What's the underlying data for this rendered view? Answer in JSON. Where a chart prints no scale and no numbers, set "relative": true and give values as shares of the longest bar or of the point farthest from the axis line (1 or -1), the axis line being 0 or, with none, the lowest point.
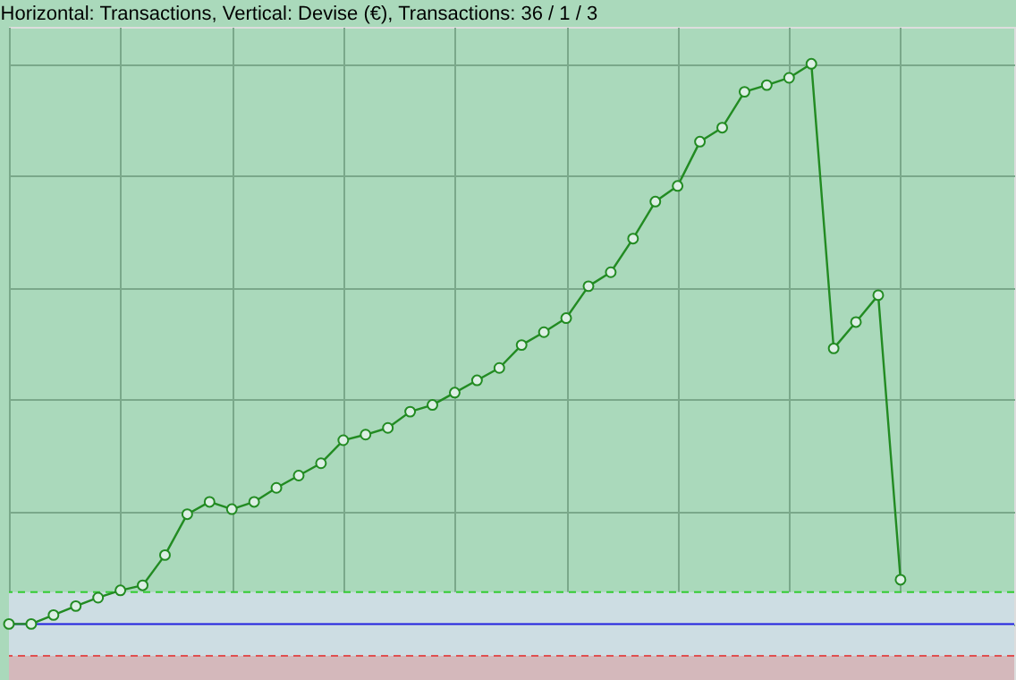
{
  "chart_data": {
    "type": "line",
    "title": "Horizontal: Transactions, Vertical: Devise (€), Transactions: 36 / 1 / 3",
    "relative": true,
    "categories": [
      null,
      null,
      null,
      null,
      null,
      null,
      null,
      null,
      null,
      null,
      null,
      null,
      null,
      null,
      null,
      null,
      null,
      null,
      null,
      null,
      null,
      null,
      null,
      null,
      null,
      null,
      null,
      null,
      null,
      null,
      null,
      null,
      null,
      null,
      null,
      null,
      null,
      null,
      null,
      null,
      null
    ],
    "series": [
      {
        "color": "#228b22",
        "values": [
          0,
          0,
          0.016,
          0.032,
          0.047,
          0.06,
          0.069,
          0.123,
          0.196,
          0.218,
          0.205,
          0.218,
          0.243,
          0.265,
          0.287,
          0.328,
          0.338,
          0.35,
          0.379,
          0.391,
          0.413,
          0.435,
          0.457,
          0.498,
          0.521,
          0.546,
          0.603,
          0.628,
          0.688,
          0.754,
          0.782,
          0.861,
          0.886,
          0.95,
          0.962,
          0.975,
          1,
          0.492,
          0.539,
          0.587,
          0.079
        ]
      }
    ],
    "marker": "circle",
    "line_style": "solid",
    "grid": true,
    "tick_labels": false,
    "ref_lines": [
      {
        "axis": "y",
        "value": 0,
        "color": "#2020e0",
        "line_style": "solid"
      },
      {
        "axis": "y",
        "value": 0.057,
        "color": "#33cc33",
        "line_style": "dashed"
      },
      {
        "axis": "y",
        "value": -0.057,
        "color": "#e05050",
        "line_style": "dashed"
      }
    ],
    "bands": [
      {
        "axis": "y",
        "from": -0.057,
        "to": 0.057,
        "color": "#cddde3"
      },
      {
        "axis": "y",
        "from": -0.1,
        "to": -0.057,
        "color": "#d4b8bb"
      }
    ]
  }
}
